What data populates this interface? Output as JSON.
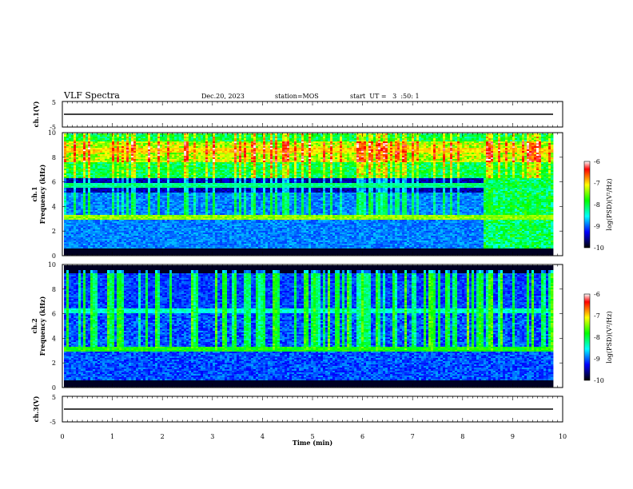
{
  "header": {
    "title": "VLF Spectra",
    "date": "Dec.20, 2023",
    "station": "station=MOS",
    "start": "start  UT =   3  :50: 1"
  },
  "colors": {
    "spectrogram_scale": [
      "#000000",
      "#00007f",
      "#0000ff",
      "#007fff",
      "#00ffff",
      "#00ff7f",
      "#00ff00",
      "#7fff00",
      "#ffff00",
      "#ff7f00",
      "#ff0000",
      "#ffffff"
    ]
  },
  "chart_data": [
    {
      "type": "line",
      "panel": "ch1-voltage",
      "ylabel": "ch.1(V)",
      "ylim": [
        -5,
        5
      ],
      "yticks": [
        "5",
        "-5"
      ],
      "trace_level": 0,
      "xlim": [
        0,
        10
      ]
    },
    {
      "type": "heatmap",
      "panel": "ch1-spectrogram",
      "ylabel": "ch.1\nFrequency (kHz)",
      "ylim": [
        0,
        10
      ],
      "yticks": [
        "0",
        "2",
        "4",
        "6",
        "8",
        "10"
      ],
      "xlim": [
        0,
        10
      ],
      "colorbar": {
        "label": "log(PSD)(V²/Hz)",
        "range": [
          -10,
          -6
        ],
        "ticks": [
          "-6",
          "-7",
          "-8",
          "-9",
          "-10"
        ]
      },
      "bands": [
        {
          "freq_khz": 3.1,
          "level": -7.6
        },
        {
          "freq_khz": 5.7,
          "level": -8.4
        },
        {
          "freq_khz": 8.6,
          "level": -7.2
        }
      ],
      "broadband_noise": {
        "from_min": 8.6,
        "to_min": 9.8,
        "level": -8.2
      }
    },
    {
      "type": "heatmap",
      "panel": "ch2-spectrogram",
      "ylabel": "ch.2\nFrequency (kHz)",
      "ylim": [
        0,
        10
      ],
      "yticks": [
        "0",
        "2",
        "4",
        "6",
        "8",
        "10"
      ],
      "xlim": [
        0,
        10
      ],
      "colorbar": {
        "label": "log(PSD)(V²/Hz)",
        "range": [
          -10,
          -6
        ],
        "ticks": [
          "-6",
          "-7",
          "-8",
          "-9",
          "-10"
        ]
      },
      "bands": [
        {
          "freq_khz": 3.1,
          "level": -8.0
        },
        {
          "freq_khz": 6.3,
          "level": -8.6
        }
      ]
    },
    {
      "type": "line",
      "panel": "ch3-voltage",
      "ylabel": "ch.3(V)",
      "ylim": [
        -5,
        5
      ],
      "yticks": [
        "5",
        "-5"
      ],
      "trace_level": 0,
      "xlim": [
        0,
        10
      ],
      "xlabel": "Time (min)",
      "xticks": [
        "0",
        "1",
        "2",
        "3",
        "4",
        "5",
        "6",
        "7",
        "8",
        "9",
        "10"
      ]
    }
  ]
}
